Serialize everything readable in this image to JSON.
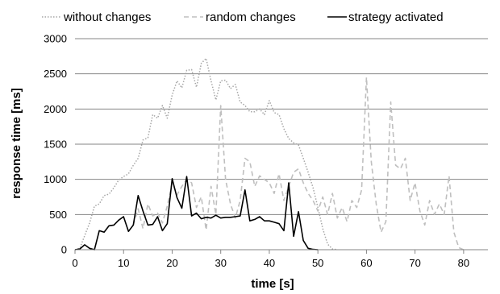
{
  "chart_data": {
    "type": "line",
    "xlabel": "time [s]",
    "ylabel": "response time [ms]",
    "xlim": [
      0,
      85
    ],
    "ylim": [
      0,
      3000
    ],
    "x_ticks": [
      0,
      10,
      20,
      30,
      40,
      50,
      60,
      70,
      80
    ],
    "y_ticks": [
      0,
      500,
      1000,
      1500,
      2000,
      2500,
      3000
    ],
    "grid": "horizontal",
    "legend_position": "top",
    "series": [
      {
        "name": "without changes",
        "color": "#a6a6a6",
        "style": "dotted",
        "points": [
          [
            0,
            0
          ],
          [
            1,
            20
          ],
          [
            2,
            200
          ],
          [
            3,
            380
          ],
          [
            4,
            620
          ],
          [
            5,
            650
          ],
          [
            6,
            770
          ],
          [
            7,
            790
          ],
          [
            8,
            880
          ],
          [
            9,
            990
          ],
          [
            10,
            1040
          ],
          [
            11,
            1080
          ],
          [
            12,
            1200
          ],
          [
            13,
            1300
          ],
          [
            14,
            1560
          ],
          [
            15,
            1590
          ],
          [
            16,
            1920
          ],
          [
            17,
            1870
          ],
          [
            18,
            2050
          ],
          [
            19,
            1870
          ],
          [
            20,
            2200
          ],
          [
            21,
            2400
          ],
          [
            22,
            2300
          ],
          [
            23,
            2550
          ],
          [
            24,
            2560
          ],
          [
            25,
            2310
          ],
          [
            26,
            2650
          ],
          [
            27,
            2720
          ],
          [
            28,
            2400
          ],
          [
            29,
            2130
          ],
          [
            30,
            2400
          ],
          [
            31,
            2410
          ],
          [
            32,
            2290
          ],
          [
            33,
            2350
          ],
          [
            34,
            2100
          ],
          [
            35,
            2050
          ],
          [
            36,
            1960
          ],
          [
            37,
            1960
          ],
          [
            38,
            2000
          ],
          [
            39,
            1920
          ],
          [
            40,
            2120
          ],
          [
            41,
            1950
          ],
          [
            42,
            1920
          ],
          [
            43,
            1720
          ],
          [
            44,
            1580
          ],
          [
            45,
            1520
          ],
          [
            46,
            1490
          ],
          [
            47,
            1300
          ],
          [
            48,
            1100
          ],
          [
            49,
            880
          ],
          [
            50,
            600
          ],
          [
            51,
            300
          ],
          [
            52,
            80
          ],
          [
            53,
            10
          ],
          [
            54,
            0
          ]
        ]
      },
      {
        "name": "random changes",
        "color": "#bfbfbf",
        "style": "dashed",
        "points": [
          [
            12,
            350
          ],
          [
            13,
            580
          ],
          [
            14,
            300
          ],
          [
            15,
            650
          ],
          [
            16,
            480
          ],
          [
            17,
            520
          ],
          [
            18,
            380
          ],
          [
            19,
            620
          ],
          [
            20,
            950
          ],
          [
            21,
            780
          ],
          [
            22,
            900
          ],
          [
            23,
            1000
          ],
          [
            24,
            950
          ],
          [
            25,
            600
          ],
          [
            26,
            750
          ],
          [
            27,
            280
          ],
          [
            28,
            900
          ],
          [
            29,
            500
          ],
          [
            30,
            2050
          ],
          [
            31,
            1000
          ],
          [
            32,
            650
          ],
          [
            33,
            450
          ],
          [
            34,
            700
          ],
          [
            35,
            1300
          ],
          [
            36,
            1250
          ],
          [
            37,
            900
          ],
          [
            38,
            1050
          ],
          [
            39,
            1000
          ],
          [
            40,
            950
          ],
          [
            41,
            800
          ],
          [
            42,
            1080
          ],
          [
            43,
            700
          ],
          [
            44,
            900
          ],
          [
            45,
            1100
          ],
          [
            46,
            1150
          ],
          [
            47,
            950
          ],
          [
            48,
            800
          ],
          [
            49,
            700
          ],
          [
            50,
            550
          ],
          [
            51,
            750
          ],
          [
            52,
            500
          ],
          [
            53,
            800
          ],
          [
            54,
            450
          ],
          [
            55,
            600
          ],
          [
            56,
            400
          ],
          [
            57,
            700
          ],
          [
            58,
            600
          ],
          [
            59,
            850
          ],
          [
            60,
            2450
          ],
          [
            61,
            1250
          ],
          [
            62,
            650
          ],
          [
            63,
            250
          ],
          [
            64,
            400
          ],
          [
            65,
            2100
          ],
          [
            66,
            1200
          ],
          [
            67,
            1150
          ],
          [
            68,
            1300
          ],
          [
            69,
            700
          ],
          [
            70,
            950
          ],
          [
            71,
            550
          ],
          [
            72,
            350
          ],
          [
            73,
            700
          ],
          [
            74,
            500
          ],
          [
            75,
            650
          ],
          [
            76,
            500
          ],
          [
            77,
            1050
          ],
          [
            78,
            250
          ],
          [
            79,
            30
          ],
          [
            80,
            0
          ]
        ]
      },
      {
        "name": "strategy activated",
        "color": "#000000",
        "style": "solid",
        "points": [
          [
            0,
            0
          ],
          [
            1,
            10
          ],
          [
            2,
            70
          ],
          [
            3,
            20
          ],
          [
            4,
            0
          ],
          [
            5,
            270
          ],
          [
            6,
            250
          ],
          [
            7,
            340
          ],
          [
            8,
            350
          ],
          [
            9,
            420
          ],
          [
            10,
            470
          ],
          [
            11,
            260
          ],
          [
            12,
            350
          ],
          [
            13,
            770
          ],
          [
            14,
            550
          ],
          [
            15,
            350
          ],
          [
            16,
            360
          ],
          [
            17,
            470
          ],
          [
            18,
            270
          ],
          [
            19,
            370
          ],
          [
            20,
            1010
          ],
          [
            21,
            740
          ],
          [
            22,
            590
          ],
          [
            23,
            1040
          ],
          [
            24,
            480
          ],
          [
            25,
            520
          ],
          [
            26,
            440
          ],
          [
            27,
            460
          ],
          [
            28,
            450
          ],
          [
            29,
            490
          ],
          [
            30,
            450
          ],
          [
            31,
            460
          ],
          [
            32,
            460
          ],
          [
            33,
            470
          ],
          [
            34,
            480
          ],
          [
            35,
            850
          ],
          [
            36,
            410
          ],
          [
            37,
            430
          ],
          [
            38,
            470
          ],
          [
            39,
            410
          ],
          [
            40,
            410
          ],
          [
            41,
            390
          ],
          [
            42,
            370
          ],
          [
            43,
            270
          ],
          [
            44,
            950
          ],
          [
            45,
            190
          ],
          [
            46,
            540
          ],
          [
            47,
            130
          ],
          [
            48,
            20
          ],
          [
            49,
            5
          ],
          [
            50,
            0
          ]
        ]
      }
    ]
  }
}
